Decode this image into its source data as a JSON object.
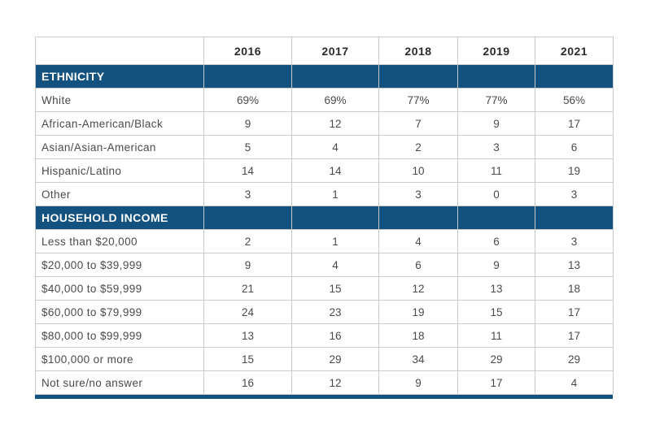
{
  "years": [
    "2016",
    "2017",
    "2018",
    "2019",
    "2021"
  ],
  "sections": [
    {
      "title": "ETHNICITY",
      "rows": [
        {
          "label": "White",
          "values": [
            "69%",
            "69%",
            "77%",
            "77%",
            "56%"
          ]
        },
        {
          "label": "African-American/Black",
          "values": [
            "9",
            "12",
            "7",
            "9",
            "17"
          ]
        },
        {
          "label": "Asian/Asian-American",
          "values": [
            "5",
            "4",
            "2",
            "3",
            "6"
          ]
        },
        {
          "label": "Hispanic/Latino",
          "values": [
            "14",
            "14",
            "10",
            "11",
            "19"
          ]
        },
        {
          "label": "Other",
          "values": [
            "3",
            "1",
            "3",
            "0",
            "3"
          ]
        }
      ]
    },
    {
      "title": "HOUSEHOLD INCOME",
      "rows": [
        {
          "label": "Less than $20,000",
          "values": [
            "2",
            "1",
            "4",
            "6",
            "3"
          ]
        },
        {
          "label": "$20,000 to $39,999",
          "values": [
            "9",
            "4",
            "6",
            "9",
            "13"
          ]
        },
        {
          "label": "$40,000 to $59,999",
          "values": [
            "21",
            "15",
            "12",
            "13",
            "18"
          ]
        },
        {
          "label": "$60,000 to $79,999",
          "values": [
            "24",
            "23",
            "19",
            "15",
            "17"
          ]
        },
        {
          "label": "$80,000 to $99,999",
          "values": [
            "13",
            "16",
            "18",
            "11",
            "17"
          ]
        },
        {
          "label": "$100,000 or more",
          "values": [
            "15",
            "29",
            "34",
            "29",
            "29"
          ]
        },
        {
          "label": "Not sure/no answer",
          "values": [
            "16",
            "12",
            "9",
            "17",
            "4"
          ]
        }
      ]
    }
  ],
  "colors": {
    "section_fill": "#13527f",
    "border": "#c9cbcd",
    "text": "#4a4a4a"
  }
}
